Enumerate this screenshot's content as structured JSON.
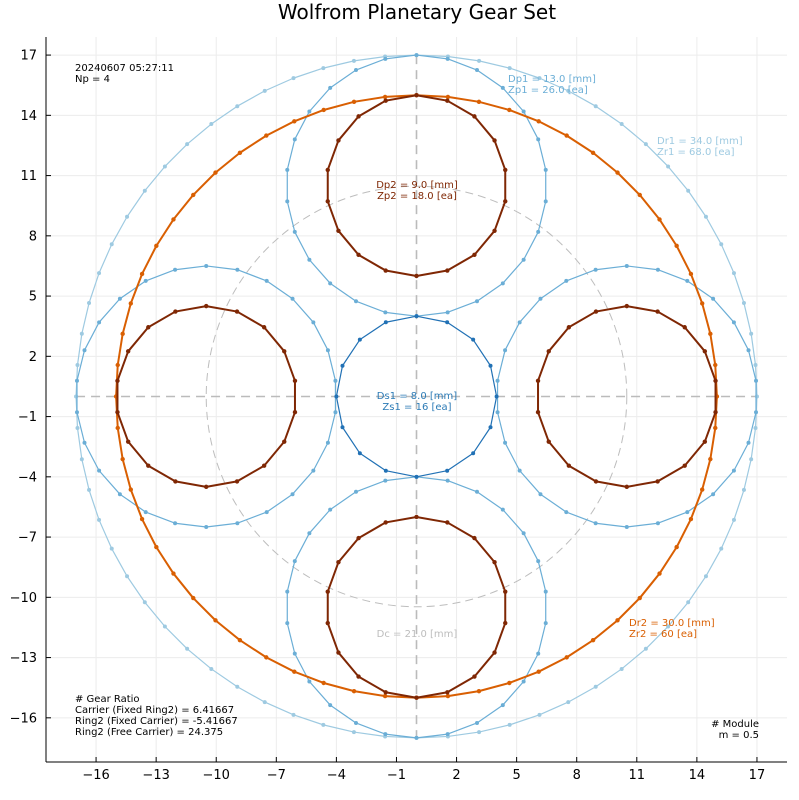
{
  "chart_data": {
    "type": "line",
    "title": "Wolfrom Planetary Gear Set",
    "xlim": [
      -18.5,
      18.5
    ],
    "ylim": [
      -18.2,
      17.9
    ],
    "xticks": [
      -16,
      -13,
      -10,
      -7,
      -4,
      -1,
      2,
      5,
      8,
      11,
      14,
      17
    ],
    "yticks": [
      -16,
      -13,
      -10,
      -7,
      -4,
      -1,
      2,
      5,
      8,
      11,
      14,
      17
    ],
    "grid": true,
    "colors": {
      "ring1": "#9ecae1",
      "planet1": "#6baed6",
      "sun": "#2171b5",
      "ring2": "#d95f02",
      "planet2": "#7f2704",
      "carrier": "#bdbdbd",
      "sun_label": "#2c7bb6",
      "axis": "#000000"
    },
    "module": 0.5,
    "planet_count": 4,
    "carrier_radius": 10.5,
    "gears": {
      "sun": {
        "diameter": 8.0,
        "teeth": 16
      },
      "planet1": {
        "diameter": 13.0,
        "teeth": 26
      },
      "ring1": {
        "diameter": 34.0,
        "teeth": 68
      },
      "planet2": {
        "diameter": 9.0,
        "teeth": 18
      },
      "ring2": {
        "diameter": 30.0,
        "teeth": 60
      }
    },
    "annotations": {
      "timestamp": "20240607 05:27:11",
      "np": "Np = 4",
      "dp1": "Dp1 = 13.0 [mm]",
      "zp1": "Zp1 = 26.0 [ea]",
      "dr1": "Dr1 = 34.0 [mm]",
      "zr1": "Zr1 = 68.0 [ea]",
      "dp2": "Dp2 = 9.0 [mm]",
      "zp2": "Zp2 = 18.0 [ea]",
      "ds1": "Ds1 = 8.0 [mm]",
      "zs1": "Zs1 = 16 [ea]",
      "dc": "Dc = 21.0 [mm]",
      "dr2": "Dr2 = 30.0 [mm]",
      "zr2": "Zr2 = 60 [ea]",
      "ratio_title": "# Gear Ratio",
      "ratio_carrier": "Carrier (Fixed Ring2) = 6.41667",
      "ratio_ring2_fixed": "Ring2 (Fixed Carrier) = -5.41667",
      "ratio_ring2_free": "Ring2 (Free Carrier) = 24.375",
      "module_title": "# Module",
      "module_value": "m = 0.5"
    }
  }
}
